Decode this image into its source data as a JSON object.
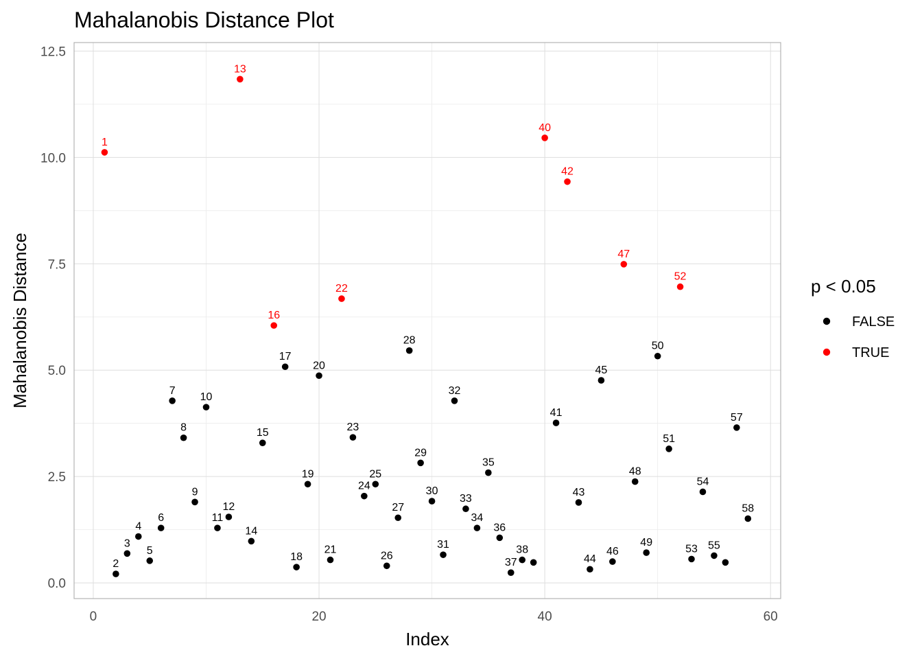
{
  "chart_data": {
    "type": "scatter",
    "title": "Mahalanobis Distance Plot",
    "xlabel": "Index",
    "ylabel": "Mahalanobis Distance",
    "xlim": [
      -1.7,
      60.9
    ],
    "ylim": [
      -0.37,
      12.7
    ],
    "x_ticks": [
      0,
      20,
      40,
      60
    ],
    "x_tick_labels": [
      "0",
      "20",
      "40",
      "60"
    ],
    "y_ticks": [
      0,
      2.5,
      5,
      7.5,
      10,
      12.5
    ],
    "y_tick_labels": [
      "0.0",
      "2.5",
      "5.0",
      "7.5",
      "10.0",
      "12.5"
    ],
    "grid": true,
    "legend": {
      "title": "p < 0.05",
      "position": "right",
      "entries": [
        {
          "label": "FALSE",
          "color": "#000000"
        },
        {
          "label": "TRUE",
          "color": "#ff0000"
        }
      ]
    },
    "colors": {
      "FALSE": "#000000",
      "TRUE": "#ff0000"
    },
    "points": [
      {
        "x": 1,
        "y": 10.12,
        "label": "1",
        "sig": true
      },
      {
        "x": 2,
        "y": 0.21,
        "label": "2",
        "sig": false
      },
      {
        "x": 3,
        "y": 0.69,
        "label": "3",
        "sig": false
      },
      {
        "x": 4,
        "y": 1.09,
        "label": "4",
        "sig": false
      },
      {
        "x": 5,
        "y": 0.52,
        "label": "5",
        "sig": false
      },
      {
        "x": 6,
        "y": 1.29,
        "label": "6",
        "sig": false
      },
      {
        "x": 7,
        "y": 4.28,
        "label": "7",
        "sig": false
      },
      {
        "x": 8,
        "y": 3.41,
        "label": "8",
        "sig": false
      },
      {
        "x": 9,
        "y": 1.9,
        "label": "9",
        "sig": false
      },
      {
        "x": 10,
        "y": 4.13,
        "label": "10",
        "sig": false
      },
      {
        "x": 11,
        "y": 1.29,
        "label": "11",
        "sig": false
      },
      {
        "x": 12,
        "y": 1.55,
        "label": "12",
        "sig": false
      },
      {
        "x": 13,
        "y": 11.84,
        "label": "13",
        "sig": true
      },
      {
        "x": 14,
        "y": 0.98,
        "label": "14",
        "sig": false
      },
      {
        "x": 15,
        "y": 3.29,
        "label": "15",
        "sig": false
      },
      {
        "x": 16,
        "y": 6.05,
        "label": "16",
        "sig": true
      },
      {
        "x": 17,
        "y": 5.08,
        "label": "17",
        "sig": false
      },
      {
        "x": 18,
        "y": 0.37,
        "label": "18",
        "sig": false
      },
      {
        "x": 19,
        "y": 2.32,
        "label": "19",
        "sig": false
      },
      {
        "x": 20,
        "y": 4.87,
        "label": "20",
        "sig": false
      },
      {
        "x": 21,
        "y": 0.54,
        "label": "21",
        "sig": false
      },
      {
        "x": 22,
        "y": 6.68,
        "label": "22",
        "sig": true
      },
      {
        "x": 23,
        "y": 3.42,
        "label": "23",
        "sig": false
      },
      {
        "x": 24,
        "y": 2.04,
        "label": "24",
        "sig": false
      },
      {
        "x": 25,
        "y": 2.32,
        "label": "25",
        "sig": false
      },
      {
        "x": 26,
        "y": 0.4,
        "label": "26",
        "sig": false
      },
      {
        "x": 27,
        "y": 1.53,
        "label": "27",
        "sig": false
      },
      {
        "x": 28,
        "y": 5.46,
        "label": "28",
        "sig": false
      },
      {
        "x": 29,
        "y": 2.82,
        "label": "29",
        "sig": false
      },
      {
        "x": 30,
        "y": 1.92,
        "label": "30",
        "sig": false
      },
      {
        "x": 31,
        "y": 0.66,
        "label": "31",
        "sig": false
      },
      {
        "x": 32,
        "y": 4.28,
        "label": "32",
        "sig": false
      },
      {
        "x": 33,
        "y": 1.74,
        "label": "33",
        "sig": false
      },
      {
        "x": 34,
        "y": 1.29,
        "label": "34",
        "sig": false
      },
      {
        "x": 35,
        "y": 2.59,
        "label": "35",
        "sig": false
      },
      {
        "x": 36,
        "y": 1.06,
        "label": "36",
        "sig": false
      },
      {
        "x": 37,
        "y": 0.24,
        "label": "37",
        "sig": false
      },
      {
        "x": 38,
        "y": 0.54,
        "label": "38",
        "sig": false
      },
      {
        "x": 39,
        "y": 0.48,
        "label": "",
        "sig": false
      },
      {
        "x": 40,
        "y": 10.46,
        "label": "40",
        "sig": true
      },
      {
        "x": 41,
        "y": 3.76,
        "label": "41",
        "sig": false
      },
      {
        "x": 42,
        "y": 9.43,
        "label": "42",
        "sig": true
      },
      {
        "x": 43,
        "y": 1.89,
        "label": "43",
        "sig": false
      },
      {
        "x": 44,
        "y": 0.32,
        "label": "44",
        "sig": false
      },
      {
        "x": 45,
        "y": 4.76,
        "label": "45",
        "sig": false
      },
      {
        "x": 46,
        "y": 0.5,
        "label": "46",
        "sig": false
      },
      {
        "x": 47,
        "y": 7.49,
        "label": "47",
        "sig": true
      },
      {
        "x": 48,
        "y": 2.38,
        "label": "48",
        "sig": false
      },
      {
        "x": 49,
        "y": 0.71,
        "label": "49",
        "sig": false
      },
      {
        "x": 50,
        "y": 5.33,
        "label": "50",
        "sig": false
      },
      {
        "x": 51,
        "y": 3.15,
        "label": "51",
        "sig": false
      },
      {
        "x": 52,
        "y": 6.96,
        "label": "52",
        "sig": true
      },
      {
        "x": 53,
        "y": 0.56,
        "label": "53",
        "sig": false
      },
      {
        "x": 54,
        "y": 2.14,
        "label": "54",
        "sig": false
      },
      {
        "x": 55,
        "y": 0.64,
        "label": "55",
        "sig": false
      },
      {
        "x": 56,
        "y": 0.48,
        "label": "",
        "sig": false
      },
      {
        "x": 57,
        "y": 3.65,
        "label": "57",
        "sig": false
      },
      {
        "x": 58,
        "y": 1.51,
        "label": "58",
        "sig": false
      }
    ]
  }
}
